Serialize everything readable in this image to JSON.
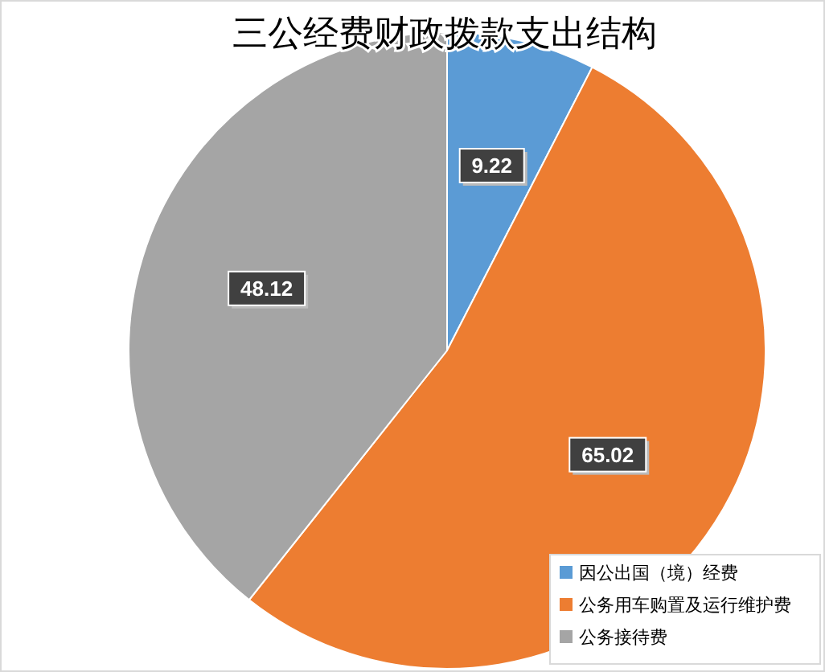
{
  "chart_data": {
    "type": "pie",
    "title": "三公经费财政拨款支出结构",
    "categories": [
      "因公出国（境）经费",
      "公务用车购置及运行维护费",
      "公务接待费"
    ],
    "values": [
      9.22,
      65.02,
      48.12
    ],
    "colors": [
      "#5b9bd5",
      "#ed7d31",
      "#a5a5a5"
    ],
    "data_labels": true,
    "legend": "bottom right"
  }
}
